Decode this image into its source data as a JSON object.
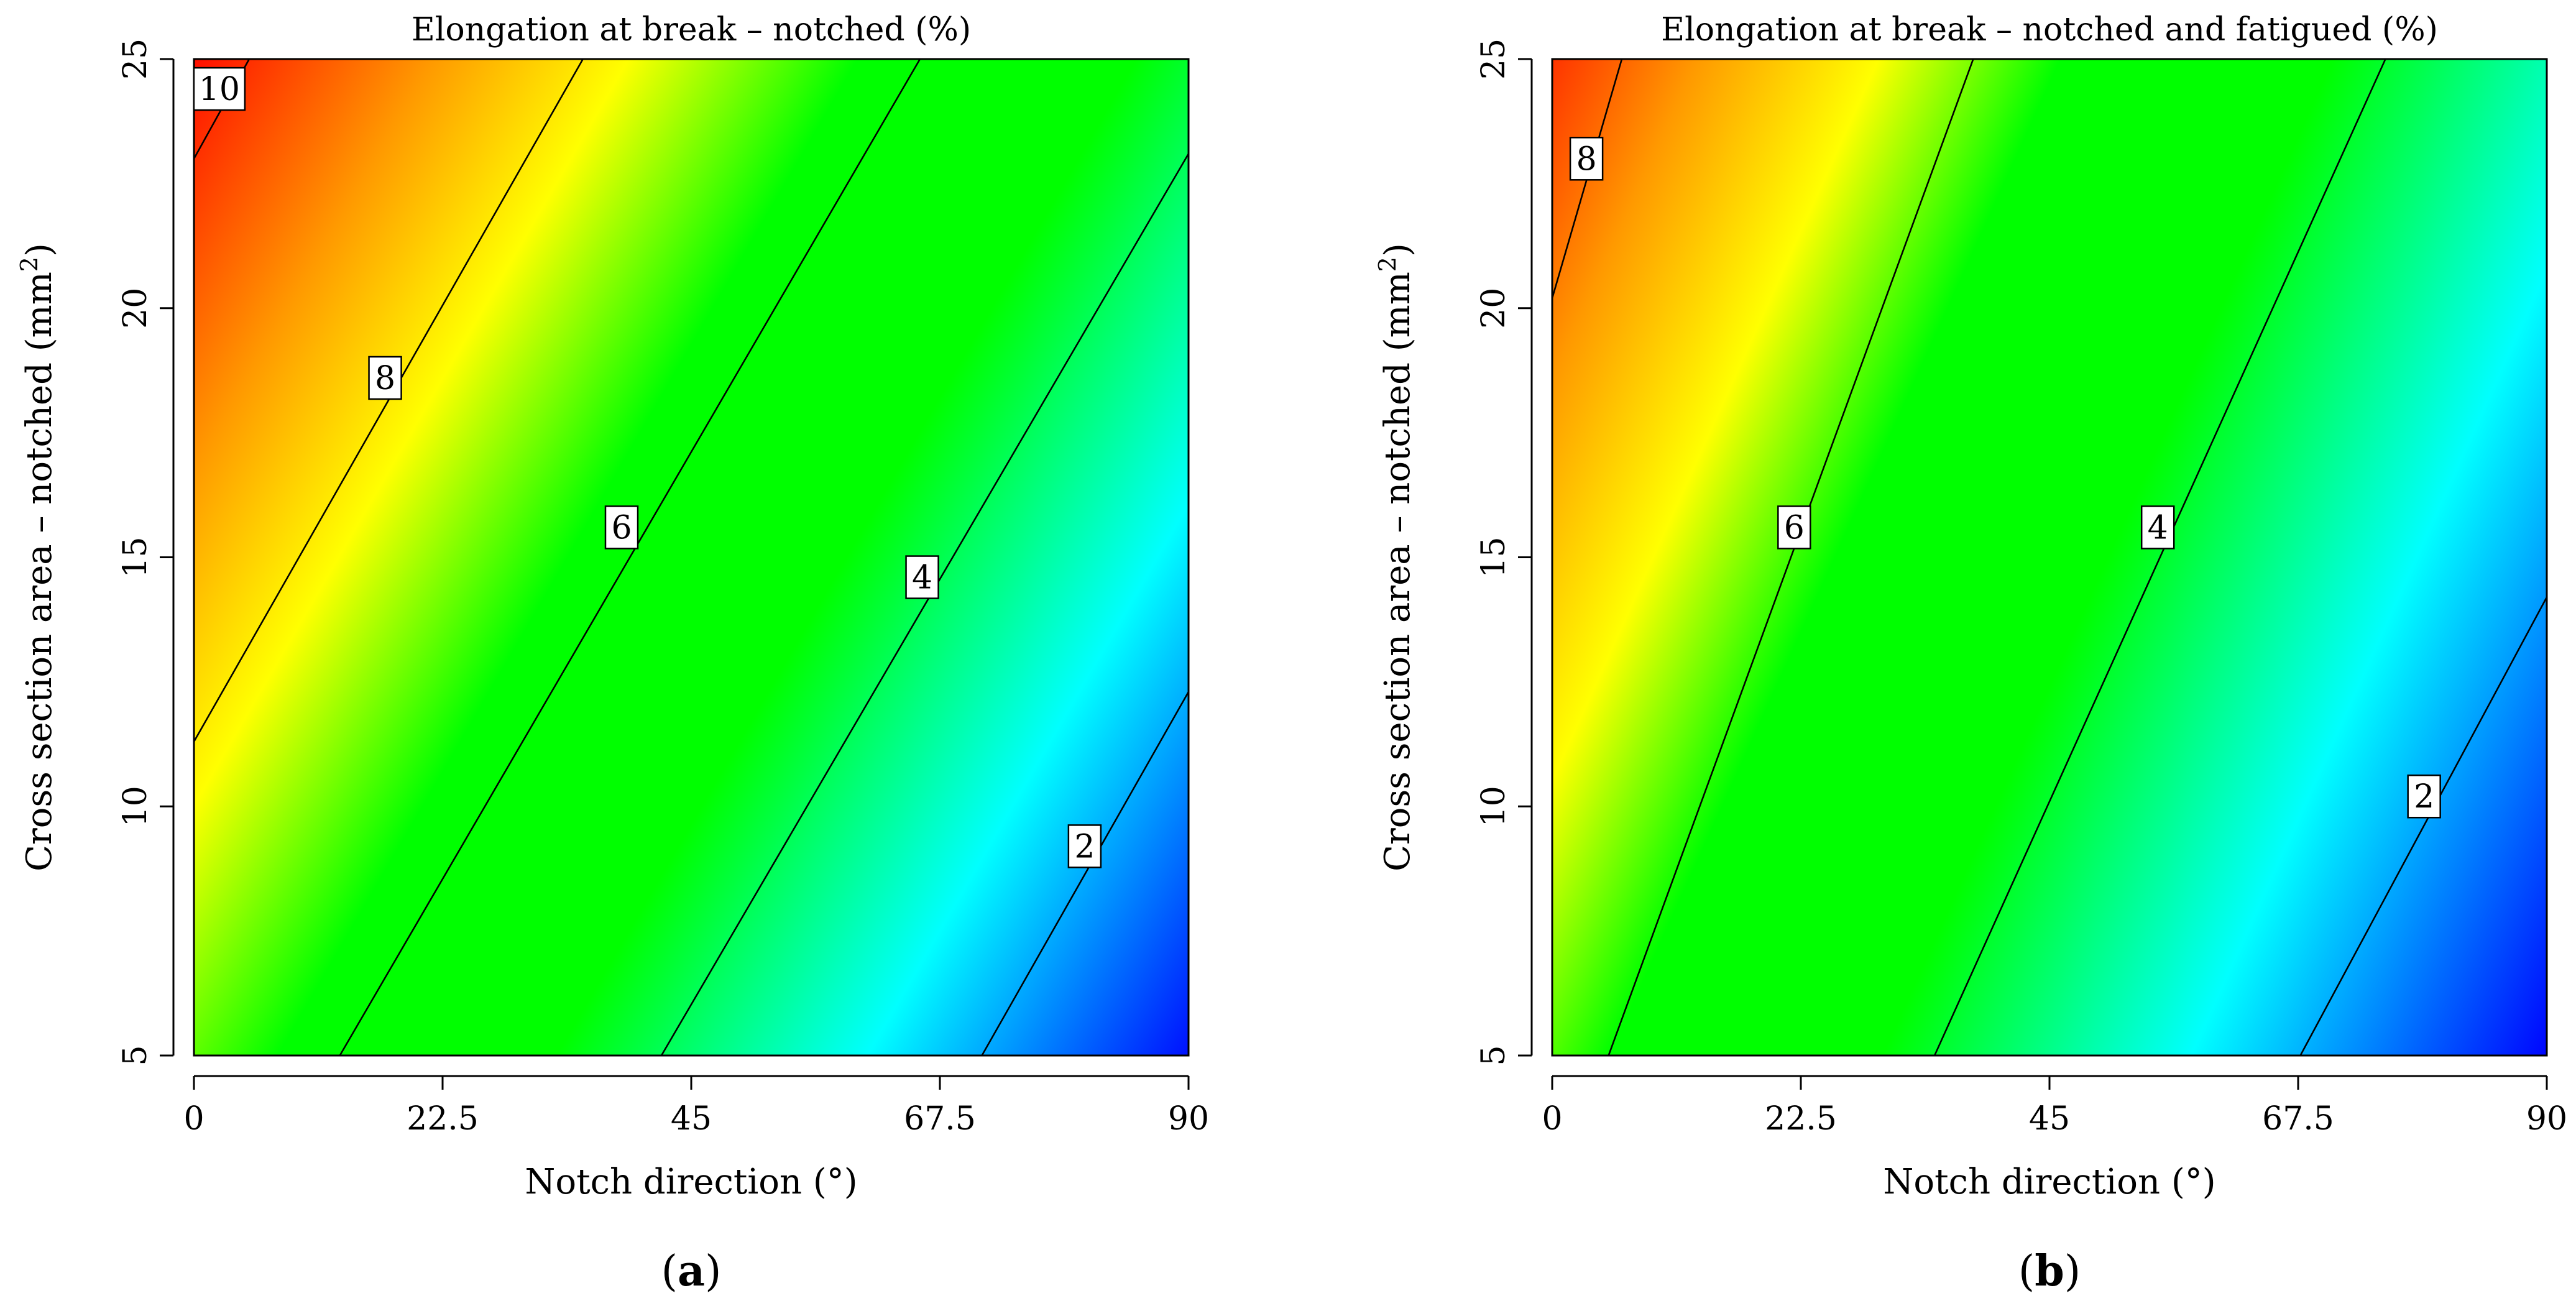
{
  "chart_data": [
    {
      "type": "contour",
      "panel_label": "a",
      "title": "Elongation at break –  notched (%)",
      "xlabel": "Notch direction (°)",
      "ylabel": "Cross section area  –  notched (mm²)",
      "ylabel_parts": {
        "prefix": "Cross section area  –  notched (mm",
        "sup": "2",
        "suffix": ")"
      },
      "xlim": [
        0,
        90
      ],
      "ylim": [
        5,
        25
      ],
      "x_ticks": [
        0,
        22.5,
        45,
        67.5,
        90
      ],
      "x_tick_labels": [
        "0",
        "22.5",
        "45",
        "67.5",
        "90"
      ],
      "y_ticks": [
        5,
        10,
        15,
        20,
        25
      ],
      "y_tick_labels": [
        "5",
        "10",
        "15",
        "20",
        "25"
      ],
      "colormap": [
        {
          "value": 0.6,
          "color": "#0000ff"
        },
        {
          "value": 2.7,
          "color": "#00ffff"
        },
        {
          "value": 4.6,
          "color": "#00ff00"
        },
        {
          "value": 6.3,
          "color": "#00ff00"
        },
        {
          "value": 7.7,
          "color": "#ffff00"
        },
        {
          "value": 8.9,
          "color": "#ff9900"
        },
        {
          "value": 10.5,
          "color": "#ff0000"
        }
      ],
      "contours": [
        {
          "level": 10,
          "label": "10",
          "x0": 0,
          "y0": 23,
          "x1": 5,
          "y1": 25,
          "label_at": [
            2.3,
            24.4
          ]
        },
        {
          "level": 8,
          "label": "8",
          "x0": 0,
          "y0": 11.3,
          "x1": 35.2,
          "y1": 25,
          "label_at": [
            17.3,
            18.6
          ]
        },
        {
          "level": 6,
          "label": "6",
          "x0": 13.2,
          "y0": 5,
          "x1": 65.7,
          "y1": 25,
          "label_at": [
            38.7,
            15.6
          ]
        },
        {
          "level": 4,
          "label": "4",
          "x0": 42.3,
          "y0": 5,
          "x1": 90,
          "y1": 23.1,
          "label_at": [
            65.9,
            14.6
          ]
        },
        {
          "level": 2,
          "label": "2",
          "x0": 71.3,
          "y0": 5,
          "x1": 90,
          "y1": 12.3,
          "label_at": [
            80.6,
            9.2
          ]
        }
      ]
    },
    {
      "type": "contour",
      "panel_label": "b",
      "title": "Elongation at break –  notched and fatigued (%)",
      "xlabel": "Notch direction (°)",
      "ylabel": "Cross section area  –  notched (mm²)",
      "ylabel_parts": {
        "prefix": "Cross section area  –  notched (mm",
        "sup": "2",
        "suffix": ")"
      },
      "xlim": [
        0,
        90
      ],
      "ylim": [
        5,
        25
      ],
      "x_ticks": [
        0,
        22.5,
        45,
        67.5,
        90
      ],
      "x_tick_labels": [
        "0",
        "22.5",
        "45",
        "67.5",
        "90"
      ],
      "y_ticks": [
        5,
        10,
        15,
        20,
        25
      ],
      "y_tick_labels": [
        "5",
        "10",
        "15",
        "20",
        "25"
      ],
      "colormap": [
        {
          "value": 0.6,
          "color": "#0000ff"
        },
        {
          "value": 2.6,
          "color": "#00ffff"
        },
        {
          "value": 4.3,
          "color": "#00ff00"
        },
        {
          "value": 5.8,
          "color": "#00ff00"
        },
        {
          "value": 6.8,
          "color": "#ffff00"
        },
        {
          "value": 7.8,
          "color": "#ff9900"
        },
        {
          "value": 9.0,
          "color": "#ff0000"
        }
      ],
      "contours": [
        {
          "level": 8,
          "label": "8",
          "x0": 0,
          "y0": 20.2,
          "x1": 6.3,
          "y1": 25,
          "label_at": [
            3.1,
            23.0
          ]
        },
        {
          "level": 6,
          "label": "6",
          "x0": 5.1,
          "y0": 5,
          "x1": 38.1,
          "y1": 25,
          "label_at": [
            21.9,
            15.6
          ]
        },
        {
          "level": 4,
          "label": "4",
          "x0": 34.6,
          "y0": 5,
          "x1": 75.4,
          "y1": 25,
          "label_at": [
            54.8,
            15.6
          ]
        },
        {
          "level": 2,
          "label": "2",
          "x0": 67.7,
          "y0": 5,
          "x1": 90,
          "y1": 14.2,
          "label_at": [
            78.9,
            10.2
          ]
        }
      ]
    }
  ]
}
